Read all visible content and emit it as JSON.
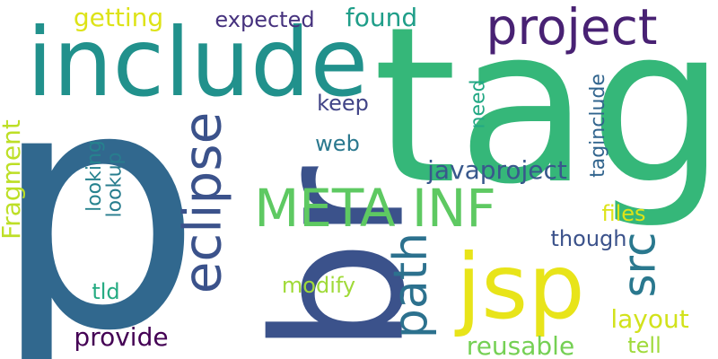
{
  "words": [
    {
      "text": "p",
      "color": "#31688e",
      "orientation": "horizontal"
    },
    {
      "text": "tag",
      "color": "#35b779",
      "orientation": "horizontal"
    },
    {
      "text": "br",
      "color": "#3b528b",
      "orientation": "vertical"
    },
    {
      "text": "include",
      "color": "#21918c",
      "orientation": "horizontal"
    },
    {
      "text": "jsp",
      "color": "#e8e419",
      "orientation": "horizontal"
    },
    {
      "text": "project",
      "color": "#482173",
      "orientation": "horizontal"
    },
    {
      "text": "META INF",
      "color": "#5ec962",
      "orientation": "horizontal"
    },
    {
      "text": "eclipse",
      "color": "#3b528b",
      "orientation": "vertical"
    },
    {
      "text": "path",
      "color": "#2c718e",
      "orientation": "vertical"
    },
    {
      "text": "src",
      "color": "#2a788e",
      "orientation": "vertical"
    },
    {
      "text": "javaproject",
      "color": "#38588c",
      "orientation": "horizontal"
    },
    {
      "text": "Fragment",
      "color": "#bddf26",
      "orientation": "vertical"
    },
    {
      "text": "reusable",
      "color": "#75d054",
      "orientation": "horizontal"
    },
    {
      "text": "layout",
      "color": "#d2e21b",
      "orientation": "horizontal"
    },
    {
      "text": "provide",
      "color": "#440154",
      "orientation": "horizontal"
    },
    {
      "text": "getting",
      "color": "#dde318",
      "orientation": "horizontal"
    },
    {
      "text": "found",
      "color": "#1f9e89",
      "orientation": "horizontal"
    },
    {
      "text": "expected",
      "color": "#46327e",
      "orientation": "horizontal"
    },
    {
      "text": "keep",
      "color": "#414487",
      "orientation": "horizontal"
    },
    {
      "text": "web",
      "color": "#2a788e",
      "orientation": "horizontal"
    },
    {
      "text": "files",
      "color": "#dde318",
      "orientation": "horizontal"
    },
    {
      "text": "though",
      "color": "#3b528b",
      "orientation": "horizontal"
    },
    {
      "text": "modify",
      "color": "#a0da39",
      "orientation": "horizontal"
    },
    {
      "text": "tld",
      "color": "#25ab82",
      "orientation": "horizontal"
    },
    {
      "text": "tell",
      "color": "#9fda3a",
      "orientation": "horizontal"
    },
    {
      "text": "looking",
      "color": "#26828e",
      "orientation": "vertical"
    },
    {
      "text": "lookup",
      "color": "#287d8e",
      "orientation": "vertical"
    },
    {
      "text": "need",
      "color": "#22a884",
      "orientation": "vertical"
    },
    {
      "text": "taginclude",
      "color": "#32658e",
      "orientation": "vertical"
    }
  ]
}
